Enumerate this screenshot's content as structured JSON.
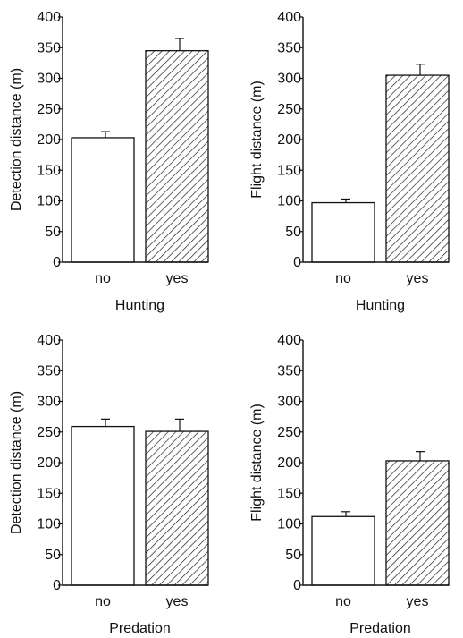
{
  "chart_data": [
    {
      "type": "bar",
      "categories": [
        "no",
        "yes"
      ],
      "values": [
        203,
        345
      ],
      "errors": [
        10,
        20
      ],
      "xlabel": "Hunting",
      "ylabel": "Detection distance (m)",
      "ylim": [
        0,
        400
      ],
      "yticks": [
        0,
        50,
        100,
        150,
        200,
        250,
        300,
        350,
        400
      ],
      "fills": [
        "plain",
        "hatched"
      ],
      "grid": false
    },
    {
      "type": "bar",
      "categories": [
        "no",
        "yes"
      ],
      "values": [
        97,
        305
      ],
      "errors": [
        6,
        18
      ],
      "xlabel": "Hunting",
      "ylabel": "Flight distance (m)",
      "ylim": [
        0,
        400
      ],
      "yticks": [
        0,
        50,
        100,
        150,
        200,
        250,
        300,
        350,
        400
      ],
      "fills": [
        "plain",
        "hatched"
      ],
      "grid": false
    },
    {
      "type": "bar",
      "categories": [
        "no",
        "yes"
      ],
      "values": [
        259,
        251
      ],
      "errors": [
        12,
        20
      ],
      "xlabel": "Predation",
      "ylabel": "Detection distance (m)",
      "ylim": [
        0,
        400
      ],
      "yticks": [
        0,
        50,
        100,
        150,
        200,
        250,
        300,
        350,
        400
      ],
      "fills": [
        "plain",
        "hatched"
      ],
      "grid": false
    },
    {
      "type": "bar",
      "categories": [
        "no",
        "yes"
      ],
      "values": [
        112,
        203
      ],
      "errors": [
        8,
        15
      ],
      "xlabel": "Predation",
      "ylabel": "Flight distance (m)",
      "ylim": [
        0,
        400
      ],
      "yticks": [
        0,
        50,
        100,
        150,
        200,
        250,
        300,
        350,
        400
      ],
      "fills": [
        "plain",
        "hatched"
      ],
      "grid": false
    }
  ]
}
